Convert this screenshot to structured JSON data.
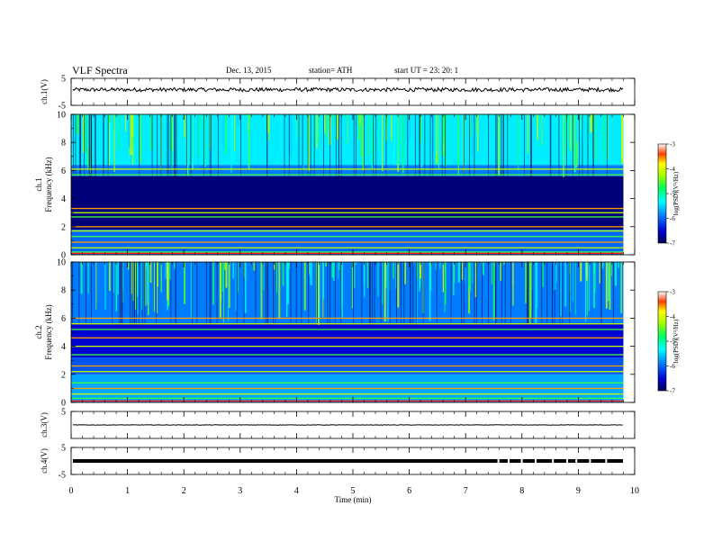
{
  "header": {
    "title": "VLF  Spectra",
    "date": "Dec. 13,  2015",
    "station": "station= ATH",
    "start": "start  UT  =    23: 20: 1"
  },
  "chart_data": [
    {
      "type": "line",
      "panel": "waveform-ch1",
      "ylabel": "ch.1(V)",
      "ylim": [
        -5,
        5
      ],
      "yticks": [
        "5",
        "-5"
      ],
      "xlim": [
        0,
        10
      ],
      "level": 0.8,
      "color": "#000000"
    },
    {
      "type": "heatmap",
      "panel": "spectrogram-ch1",
      "ylabel": [
        "ch.1",
        "Frequency  (kHz)"
      ],
      "ylim": [
        0,
        10
      ],
      "yticks": [
        "0",
        "2",
        "4",
        "6",
        "8",
        "10"
      ],
      "xlim": [
        0,
        9.8
      ],
      "colorbar": {
        "label": "log(PSD)(V²/Hz)",
        "range": [
          -7,
          -3
        ],
        "ticks": [
          "-3",
          "-4",
          "-5",
          "-6",
          "-7"
        ]
      },
      "bands": [
        {
          "from": 0.0,
          "to": 1.8,
          "level": -6.0
        },
        {
          "from": 1.8,
          "to": 5.6,
          "level": -6.85
        },
        {
          "from": 5.6,
          "to": 6.4,
          "level": -5.9
        },
        {
          "from": 6.4,
          "to": 10.0,
          "level": -5.4
        }
      ],
      "lines_khz": [
        0.2,
        0.5,
        0.9,
        1.3,
        1.7,
        2.0,
        2.7,
        3.0,
        3.3,
        5.7,
        6.1
      ]
    },
    {
      "type": "heatmap",
      "panel": "spectrogram-ch2",
      "ylabel": [
        "ch.2",
        "Frequency  (kHz)"
      ],
      "ylim": [
        0,
        10
      ],
      "yticks": [
        "0",
        "2",
        "4",
        "6",
        "8",
        "10"
      ],
      "xlim": [
        0,
        9.8
      ],
      "colorbar": {
        "label": "log(PSD)(V²/Hz)",
        "range": [
          -7,
          -3
        ],
        "ticks": [
          "-3",
          "-4",
          "-5",
          "-6",
          "-7"
        ]
      },
      "bands": [
        {
          "from": 0.0,
          "to": 2.0,
          "level": -5.7
        },
        {
          "from": 2.0,
          "to": 3.2,
          "level": -6.1
        },
        {
          "from": 3.2,
          "to": 5.6,
          "level": -6.5
        },
        {
          "from": 5.6,
          "to": 10.0,
          "level": -5.9
        }
      ],
      "lines_khz": [
        0.3,
        0.6,
        1.0,
        1.4,
        2.2,
        2.6,
        3.4,
        4.0,
        4.6,
        5.2,
        5.6,
        6.0
      ]
    },
    {
      "type": "line",
      "panel": "waveform-ch3",
      "ylabel": "ch.3(V)",
      "ylim": [
        -5,
        5
      ],
      "yticks": [
        "5"
      ],
      "xlim": [
        0,
        10
      ],
      "level": 0,
      "color": "#000000"
    },
    {
      "type": "line",
      "panel": "waveform-ch4",
      "ylabel": "ch.4(V)",
      "ylim": [
        -5,
        5
      ],
      "yticks": [
        "5",
        "-5"
      ],
      "xlim": [
        0,
        10
      ],
      "level": 0,
      "color": "#000000"
    }
  ],
  "xaxis": {
    "label": "Time  (min)",
    "ticks": [
      "0",
      "1",
      "2",
      "3",
      "4",
      "5",
      "6",
      "7",
      "8",
      "9",
      "10"
    ]
  }
}
